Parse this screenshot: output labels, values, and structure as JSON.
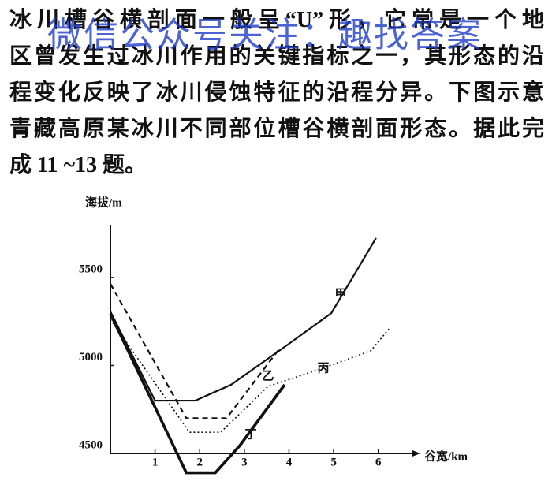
{
  "watermark": "微信公众号关注：趣找答案",
  "passage": [
    "冰川槽谷横剖面一般呈“U”形，它常是一个地",
    "区曾发生过冰川作用的关键指标之一，其形态的沿",
    "程变化反映了冰川侵蚀特征的沿程分异。下图示意",
    "青藏高原某冰川不同部位槽谷横剖面形态。据此完",
    "成 11 ~13 题。"
  ],
  "chart_data": {
    "type": "line",
    "y_label": "海拔/m",
    "x_label": "谷宽/km",
    "xlim": [
      0,
      6.8
    ],
    "ylim": [
      4500,
      5800
    ],
    "xticks": [
      1,
      2,
      3,
      4,
      5,
      6
    ],
    "yticks": [
      4500,
      5000,
      5500
    ],
    "series": [
      {
        "name": "甲",
        "color": "#111111",
        "dash": "solid",
        "x": [
          0,
          1,
          1.9,
          2.7,
          3.9,
          4.95,
          5.95
        ],
        "values": [
          5307,
          4800,
          4800,
          4890,
          5105,
          5298,
          5724
        ]
      },
      {
        "name": "乙",
        "color": "#111111",
        "dash": "dashed",
        "x": [
          0,
          1.7,
          2.6,
          3.8
        ],
        "values": [
          5464,
          4700,
          4700,
          5100
        ]
      },
      {
        "name": "丙",
        "color": "#111111",
        "dash": "dotted",
        "x": [
          0,
          1.77,
          2.47,
          3.53,
          4.6,
          5.83,
          6.27
        ],
        "values": [
          5262,
          4620,
          4620,
          4881,
          4971,
          5083,
          5217
        ]
      },
      {
        "name": "丁",
        "color": "#111111",
        "dash": "thick",
        "x": [
          0,
          1.7,
          2.35,
          2.9,
          3.9
        ],
        "values": [
          5294,
          4390,
          4390,
          4545,
          4890
        ]
      }
    ]
  }
}
